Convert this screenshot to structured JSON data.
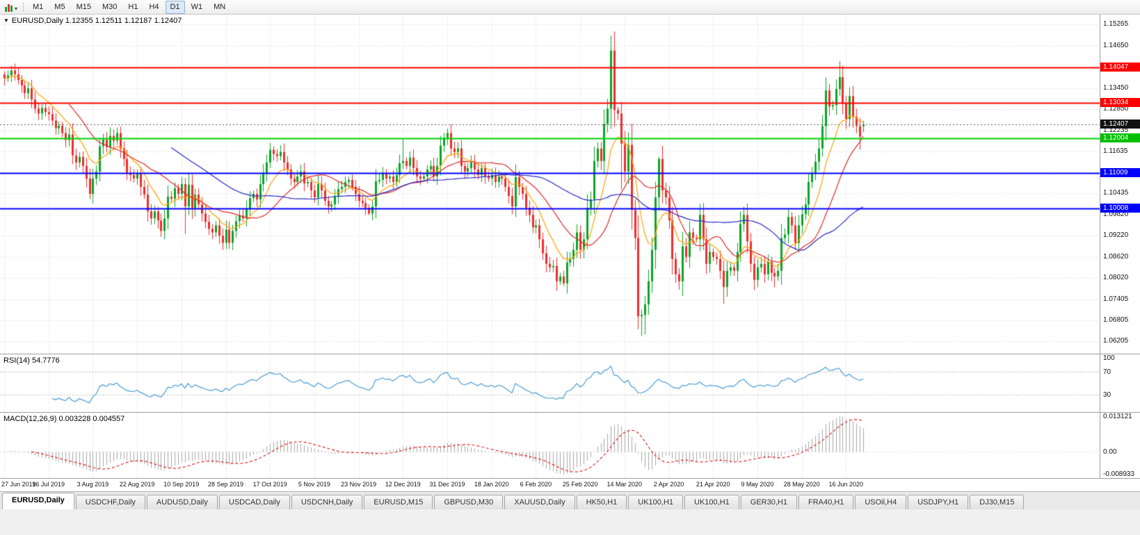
{
  "toolbar": {
    "timeframes": [
      {
        "label": "M1",
        "active": false
      },
      {
        "label": "M5",
        "active": false
      },
      {
        "label": "M15",
        "active": false
      },
      {
        "label": "M30",
        "active": false
      },
      {
        "label": "H1",
        "active": false
      },
      {
        "label": "H4",
        "active": false
      },
      {
        "label": "D1",
        "active": true
      },
      {
        "label": "W1",
        "active": false
      },
      {
        "label": "MN",
        "active": false
      }
    ]
  },
  "chart": {
    "dropdown_icon": "▼",
    "title": "EURUSD,Daily 1.12355 1.12511 1.12187 1.12407"
  },
  "rsi_panel": {
    "label": "RSI(14) 54.7776",
    "levels": [
      70,
      30
    ],
    "axis_labels": [
      {
        "v": 100,
        "t": "100"
      },
      {
        "v": 70,
        "t": "70"
      },
      {
        "v": 30,
        "t": "30"
      }
    ]
  },
  "macd_panel": {
    "label": "MACD(12,26,9) 0.003228 0.004557",
    "range": {
      "min": -0.008933,
      "max": 0.013121
    },
    "axis_labels": [
      {
        "v": 0.013121,
        "t": "0.013121"
      },
      {
        "v": 0,
        "t": "0.00"
      },
      {
        "v": -0.008933,
        "t": "-0.008933"
      }
    ]
  },
  "price_axis": {
    "ticks": [
      {
        "t": "1.15265",
        "v": 1.15265
      },
      {
        "t": "1.14650",
        "v": 1.1465
      },
      {
        "t": "1.13450",
        "v": 1.1345
      },
      {
        "t": "1.12850",
        "v": 1.1285
      },
      {
        "t": "1.12235",
        "v": 1.12235
      },
      {
        "t": "1.11635",
        "v": 1.11635
      },
      {
        "t": "1.10435",
        "v": 1.10435
      },
      {
        "t": "1.09820",
        "v": 1.0982
      },
      {
        "t": "1.09220",
        "v": 1.0922
      },
      {
        "t": "1.08620",
        "v": 1.0862
      },
      {
        "t": "1.08020",
        "v": 1.0802
      },
      {
        "t": "1.07405",
        "v": 1.07405
      },
      {
        "t": "1.06805",
        "v": 1.06805
      },
      {
        "t": "1.06205",
        "v": 1.06205
      }
    ],
    "tags": [
      {
        "t": "1.14047",
        "v": 1.14047,
        "color": "#fe0000"
      },
      {
        "t": "1.13034",
        "v": 1.13034,
        "color": "#fe0000"
      },
      {
        "t": "1.12407",
        "v": 1.12407,
        "color": "#111111"
      },
      {
        "t": "1.12004",
        "v": 1.12004,
        "color": "#00c000"
      },
      {
        "t": "1.11009",
        "v": 1.11009,
        "color": "#0000fe"
      },
      {
        "t": "1.10008",
        "v": 1.10008,
        "color": "#0000fe"
      }
    ]
  },
  "time_axis": {
    "step": 13,
    "labels": [
      "27 Jun 2019",
      "16 Jul 2019",
      "3 Aug 2019",
      "22 Aug 2019",
      "10 Sep 2019",
      "28 Sep 2019",
      "17 Oct 2019",
      "5 Nov 2019",
      "23 Nov 2019",
      "12 Dec 2019",
      "31 Dec 2019",
      "18 Jan 2020",
      "6 Feb 2020",
      "25 Feb 2020",
      "14 Mar 2020",
      "2 Apr 2020",
      "21 Apr 2020",
      "9 May 2020",
      "28 May 2020",
      "16 Jun 2020"
    ]
  },
  "tabs": [
    {
      "label": "EURUSD,Daily",
      "active": true
    },
    {
      "label": "USDCHF,Daily",
      "active": false
    },
    {
      "label": "AUDUSD,Daily",
      "active": false
    },
    {
      "label": "USDCAD,Daily",
      "active": false
    },
    {
      "label": "USDCNH,Daily",
      "active": false
    },
    {
      "label": "EURUSD,M15",
      "active": false
    },
    {
      "label": "GBPUSD,M30",
      "active": false
    },
    {
      "label": "XAUUSD,Daily",
      "active": false
    },
    {
      "label": "HK50,H1",
      "active": false
    },
    {
      "label": "UK100,H1",
      "active": false
    },
    {
      "label": "UK100,H1",
      "active": false
    },
    {
      "label": "GER30,H1",
      "active": false
    },
    {
      "label": "FRA40,H1",
      "active": false
    },
    {
      "label": "USOil,H4",
      "active": false
    },
    {
      "label": "USDJPY,H1",
      "active": false
    },
    {
      "label": "DJ30,M15",
      "active": false
    }
  ],
  "chart_data": {
    "type": "candlestick",
    "symbol": "EURUSD",
    "period": "Daily",
    "ohlc_display": {
      "open": "1.12355",
      "high": "1.12511",
      "low": "1.12187",
      "close": "1.12407"
    },
    "current_price": 1.12407,
    "price_range": {
      "min": 1.0585,
      "max": 1.1555
    },
    "grid_extra": [
      1.14045,
      1.11032
    ],
    "h_lines": [
      {
        "price": 1.14047,
        "color": "#fe0000",
        "width": 2
      },
      {
        "price": 1.13034,
        "color": "#fe0000",
        "width": 2
      },
      {
        "price": 1.12004,
        "color": "#00d200",
        "width": 2
      },
      {
        "price": 1.11009,
        "color": "#0000fe",
        "width": 2
      },
      {
        "price": 1.10008,
        "color": "#0000fe",
        "width": 2
      }
    ],
    "ma": [
      {
        "type": "ema",
        "period": 10,
        "color": "#ffa200"
      },
      {
        "type": "sma",
        "period": 20,
        "color": "#e02828"
      },
      {
        "type": "sma",
        "period": 50,
        "color": "#2828c8"
      }
    ],
    "colors": {
      "up": "#0aa425",
      "down": "#ef2d2d",
      "grid": "#d9d9d9",
      "rsi": "#4a9bd4",
      "rsi_level": "#bdbdbd",
      "macd_hist": "#a6a6a6",
      "macd_signal": "#e02020",
      "current": "#555555"
    },
    "closes": [
      1.1372,
      1.1381,
      1.1395,
      1.1384,
      1.1368,
      1.1352,
      1.133,
      1.1344,
      1.1312,
      1.1286,
      1.1272,
      1.1288,
      1.1276,
      1.127,
      1.1252,
      1.123,
      1.1237,
      1.1216,
      1.1196,
      1.1212,
      1.1152,
      1.1132,
      1.1148,
      1.1122,
      1.1086,
      1.1042,
      1.1086,
      1.1106,
      1.1178,
      1.1198,
      1.1176,
      1.1208,
      1.1194,
      1.1216,
      1.1172,
      1.1142,
      1.1102,
      1.1096,
      1.1086,
      1.11,
      1.1062,
      1.104,
      1.0992,
      1.0972,
      1.0992,
      1.0966,
      1.0936,
      1.0972,
      1.1034,
      1.1028,
      1.1058,
      1.1042,
      1.107,
      1.1006,
      1.1068,
      1.1002,
      1.104,
      1.1012,
      1.0986,
      1.0962,
      1.0942,
      1.0932,
      1.0952,
      1.0922,
      1.0902,
      1.094,
      1.0902,
      1.0936,
      1.0964,
      1.098,
      1.0972,
      1.1,
      1.103,
      1.1042,
      1.1026,
      1.107,
      1.1102,
      1.1132,
      1.1168,
      1.1156,
      1.115,
      1.1162,
      1.1132,
      1.1112,
      1.1086,
      1.1076,
      1.1092,
      1.1106,
      1.1072,
      1.1076,
      1.1052,
      1.1032,
      1.107,
      1.1052,
      1.1022,
      1.1006,
      1.1012,
      1.1036,
      1.1056,
      1.1062,
      1.1076,
      1.1082,
      1.1062,
      1.1042,
      1.1022,
      1.1016,
      1.1002,
      1.0986,
      1.1006,
      1.1078,
      1.1082,
      1.11,
      1.1086,
      1.1092,
      1.1076,
      1.1096,
      1.113,
      1.1136,
      1.1122,
      1.1146,
      1.1116,
      1.1092,
      1.1086,
      1.1092,
      1.1112,
      1.1122,
      1.1092,
      1.1122,
      1.118,
      1.1202,
      1.1216,
      1.1172,
      1.1162,
      1.1172,
      1.1122,
      1.1106,
      1.1116,
      1.1132,
      1.1112,
      1.1096,
      1.1116,
      1.1092,
      1.1086,
      1.1096,
      1.1076,
      1.1092,
      1.1086,
      1.1062,
      1.1036,
      1.1006,
      1.109,
      1.1062,
      1.1042,
      1.1002,
      1.0982,
      1.0946,
      1.0952,
      1.0912,
      1.0872,
      1.0842,
      1.0832,
      1.0836,
      1.0792,
      1.0806,
      1.0786,
      1.0846,
      1.0856,
      1.0882,
      1.0932,
      1.0882,
      1.0912,
      1.1002,
      1.1026,
      1.1136,
      1.1172,
      1.1136,
      1.1242,
      1.1286,
      1.1452,
      1.1282,
      1.1272,
      1.1186,
      1.1106,
      1.1182,
      1.0996,
      1.0916,
      1.0692,
      1.0696,
      1.0726,
      1.0792,
      1.0882,
      1.1032,
      1.1142,
      1.1052,
      1.1032,
      1.0966,
      1.0856,
      1.0812,
      1.0792,
      1.0892,
      1.0862,
      1.0932,
      1.0916,
      1.0912,
      1.0982,
      1.0912,
      1.0842,
      1.0876,
      1.0862,
      1.0856,
      1.0822,
      1.0776,
      1.0822,
      1.0832,
      1.0822,
      1.0876,
      1.0956,
      1.0982,
      1.0906,
      1.0842,
      1.0796,
      1.0832,
      1.0842,
      1.0812,
      1.0848,
      1.0816,
      1.0806,
      1.0822,
      1.0916,
      1.0926,
      1.0976,
      1.0952,
      1.0902,
      1.0952,
      1.0984,
      1.1012,
      1.1076,
      1.1102,
      1.1134,
      1.1172,
      1.1236,
      1.1338,
      1.1292,
      1.1296,
      1.1342,
      1.1376,
      1.1302,
      1.1256,
      1.1322,
      1.1262,
      1.1236,
      1.1206,
      1.12407
    ],
    "overrides": {
      "2": {
        "h": 1.1409
      },
      "25": {
        "l": 1.1027
      },
      "53": {
        "l": 1.0927,
        "h": 1.1087
      },
      "66": {
        "l": 1.0885
      },
      "107": {
        "l": 1.0981
      },
      "117": {
        "h": 1.1199
      },
      "164": {
        "l": 1.0778
      },
      "178": {
        "h": 1.1495
      },
      "181": {
        "l": 1.1054
      },
      "186": {
        "l": 1.0655
      },
      "187": {
        "l": 1.0636
      },
      "188": {
        "l": 1.064
      },
      "192": {
        "h": 1.1148
      },
      "198": {
        "l": 1.0768
      },
      "211": {
        "l": 1.0727
      },
      "220": {
        "l": 1.0767
      },
      "226": {
        "l": 1.0775
      },
      "245": {
        "h": 1.1422
      },
      "251": {
        "l": 1.1168
      },
      "252": {
        "o": 1.12355,
        "h": 1.12511,
        "l": 1.12187
      }
    }
  }
}
